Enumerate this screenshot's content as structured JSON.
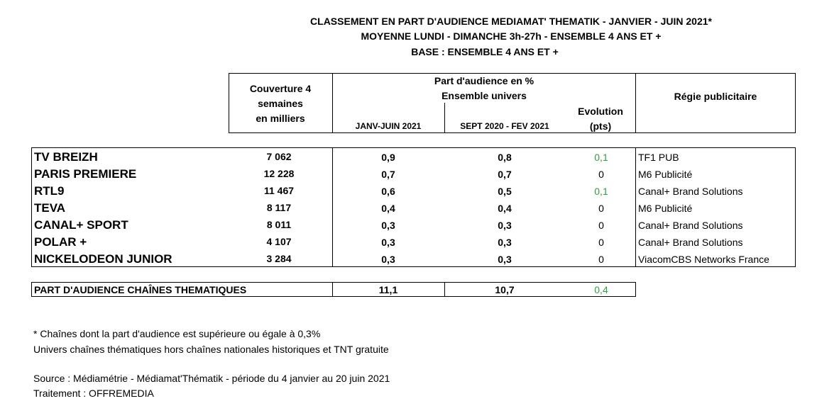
{
  "header": {
    "title_lines": [
      "CLASSEMENT EN PART D'AUDIENCE MEDIAMAT' THEMATIK - JANVIER - JUIN 2021*",
      "MOYENNE LUNDI - DIMANCHE 3h-27h - ENSEMBLE 4 ANS ET +",
      "BASE : ENSEMBLE 4 ANS ET +"
    ]
  },
  "table": {
    "columns": {
      "coverage": [
        "Couverture 4",
        "semaines",
        "en milliers"
      ],
      "share": [
        "Part d'audience en %",
        "Ensemble univers"
      ],
      "share_2021": "JANV-JUIN 2021",
      "share_prev": "SEPT 2020 - FEV 2021",
      "evolution": [
        "Evolution",
        "(pts)"
      ],
      "agency": "Régie publicitaire"
    },
    "rows": [
      {
        "channel": "TV BREIZH",
        "coverage": "7 062",
        "share_2021": "0,9",
        "share_prev": "0,8",
        "evolution": "0,1",
        "evolution_color": "#2ea043",
        "agency": "TF1 PUB"
      },
      {
        "channel": "PARIS PREMIERE",
        "coverage": "12 228",
        "share_2021": "0,7",
        "share_prev": "0,7",
        "evolution": "0",
        "evolution_color": "#000000",
        "agency": "M6 Publicité"
      },
      {
        "channel": "RTL9",
        "coverage": "11 467",
        "share_2021": "0,6",
        "share_prev": "0,5",
        "evolution": "0,1",
        "evolution_color": "#2ea043",
        "agency": "Canal+ Brand Solutions"
      },
      {
        "channel": "TEVA",
        "coverage": "8 117",
        "share_2021": "0,4",
        "share_prev": "0,4",
        "evolution": "0",
        "evolution_color": "#000000",
        "agency": "M6 Publicité"
      },
      {
        "channel": "CANAL+ SPORT",
        "coverage": "8 011",
        "share_2021": "0,3",
        "share_prev": "0,3",
        "evolution": "0",
        "evolution_color": "#000000",
        "agency": "Canal+ Brand Solutions"
      },
      {
        "channel": "POLAR +",
        "coverage": "4 107",
        "share_2021": "0,3",
        "share_prev": "0,3",
        "evolution": "0",
        "evolution_color": "#000000",
        "agency": "Canal+ Brand Solutions"
      },
      {
        "channel": "NICKELODEON JUNIOR",
        "coverage": "3 284",
        "share_2021": "0,3",
        "share_prev": "0,3",
        "evolution": "0",
        "evolution_color": "#000000",
        "agency": "ViacomCBS Networks France"
      }
    ],
    "total": {
      "label": "PART D'AUDIENCE CHAÎNES THEMATIQUES",
      "share_2021": "11,1",
      "share_prev": "10,7",
      "evolution": "0,4",
      "evolution_color": "#2ea043"
    }
  },
  "footer": {
    "notes": [
      "* Chaînes dont la part d'audience est supérieure ou égale à 0,3%",
      "Univers chaînes thématiques hors chaînes nationales historiques et TNT gratuite"
    ],
    "source": [
      "Source : Médiamétrie - Médiamat'Thématik - période du 4 janvier au 20 juin 2021",
      "Traitement : OFFREMEDIA"
    ]
  }
}
